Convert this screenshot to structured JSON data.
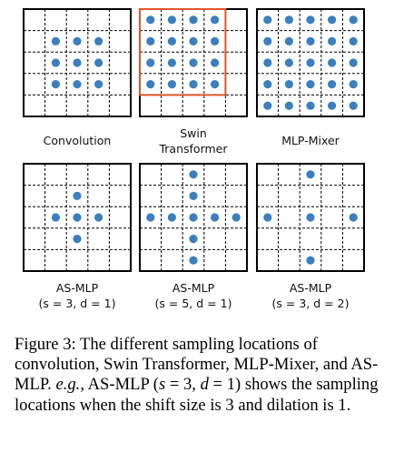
{
  "colors": {
    "dot": "#3a7fbf",
    "window": "#e0552a",
    "grid": "#000000"
  },
  "panels": [
    {
      "label_lines": [
        "Convolution"
      ],
      "dots": [
        [
          1,
          1
        ],
        [
          1,
          2
        ],
        [
          1,
          3
        ],
        [
          2,
          1
        ],
        [
          2,
          2
        ],
        [
          2,
          3
        ],
        [
          3,
          1
        ],
        [
          3,
          2
        ],
        [
          3,
          3
        ]
      ]
    },
    {
      "label_lines": [
        "Swin",
        "Transformer"
      ],
      "window": [
        0,
        0,
        4,
        4
      ],
      "dots": [
        [
          0,
          0
        ],
        [
          0,
          1
        ],
        [
          0,
          2
        ],
        [
          0,
          3
        ],
        [
          1,
          0
        ],
        [
          1,
          1
        ],
        [
          1,
          2
        ],
        [
          1,
          3
        ],
        [
          2,
          0
        ],
        [
          2,
          1
        ],
        [
          2,
          2
        ],
        [
          2,
          3
        ],
        [
          3,
          0
        ],
        [
          3,
          1
        ],
        [
          3,
          2
        ],
        [
          3,
          3
        ]
      ]
    },
    {
      "label_lines": [
        "MLP-Mixer"
      ],
      "dots": [
        [
          0,
          0
        ],
        [
          0,
          1
        ],
        [
          0,
          2
        ],
        [
          0,
          3
        ],
        [
          0,
          4
        ],
        [
          1,
          0
        ],
        [
          1,
          1
        ],
        [
          1,
          2
        ],
        [
          1,
          3
        ],
        [
          1,
          4
        ],
        [
          2,
          0
        ],
        [
          2,
          1
        ],
        [
          2,
          2
        ],
        [
          2,
          3
        ],
        [
          2,
          4
        ],
        [
          3,
          0
        ],
        [
          3,
          1
        ],
        [
          3,
          2
        ],
        [
          3,
          3
        ],
        [
          3,
          4
        ],
        [
          4,
          0
        ],
        [
          4,
          1
        ],
        [
          4,
          2
        ],
        [
          4,
          3
        ],
        [
          4,
          4
        ]
      ]
    },
    {
      "label_lines": [
        "AS-MLP",
        "(s = 3, d = 1)"
      ],
      "dots": [
        [
          1,
          2
        ],
        [
          2,
          1
        ],
        [
          2,
          2
        ],
        [
          2,
          3
        ],
        [
          3,
          2
        ]
      ]
    },
    {
      "label_lines": [
        "AS-MLP",
        "(s = 5, d = 1)"
      ],
      "dots": [
        [
          0,
          2
        ],
        [
          1,
          2
        ],
        [
          2,
          0
        ],
        [
          2,
          1
        ],
        [
          2,
          2
        ],
        [
          2,
          3
        ],
        [
          2,
          4
        ],
        [
          3,
          2
        ],
        [
          4,
          2
        ]
      ]
    },
    {
      "label_lines": [
        "AS-MLP",
        "(s = 3, d = 2)"
      ],
      "dots": [
        [
          0,
          2
        ],
        [
          2,
          0
        ],
        [
          2,
          2
        ],
        [
          2,
          4
        ],
        [
          4,
          2
        ]
      ]
    }
  ],
  "caption": {
    "prefix": "Figure 3: The different sampling locations of convolution, Swin Transformer, MLP-Mixer, and AS-MLP.",
    "eg": "e.g.",
    "middle": ", AS-MLP (",
    "s_var": "s",
    "s_val": " = 3, ",
    "d_var": "d",
    "d_val": " = 1)",
    "suffix": "shows the sampling locations when the shift size is 3 and dilation is 1."
  }
}
